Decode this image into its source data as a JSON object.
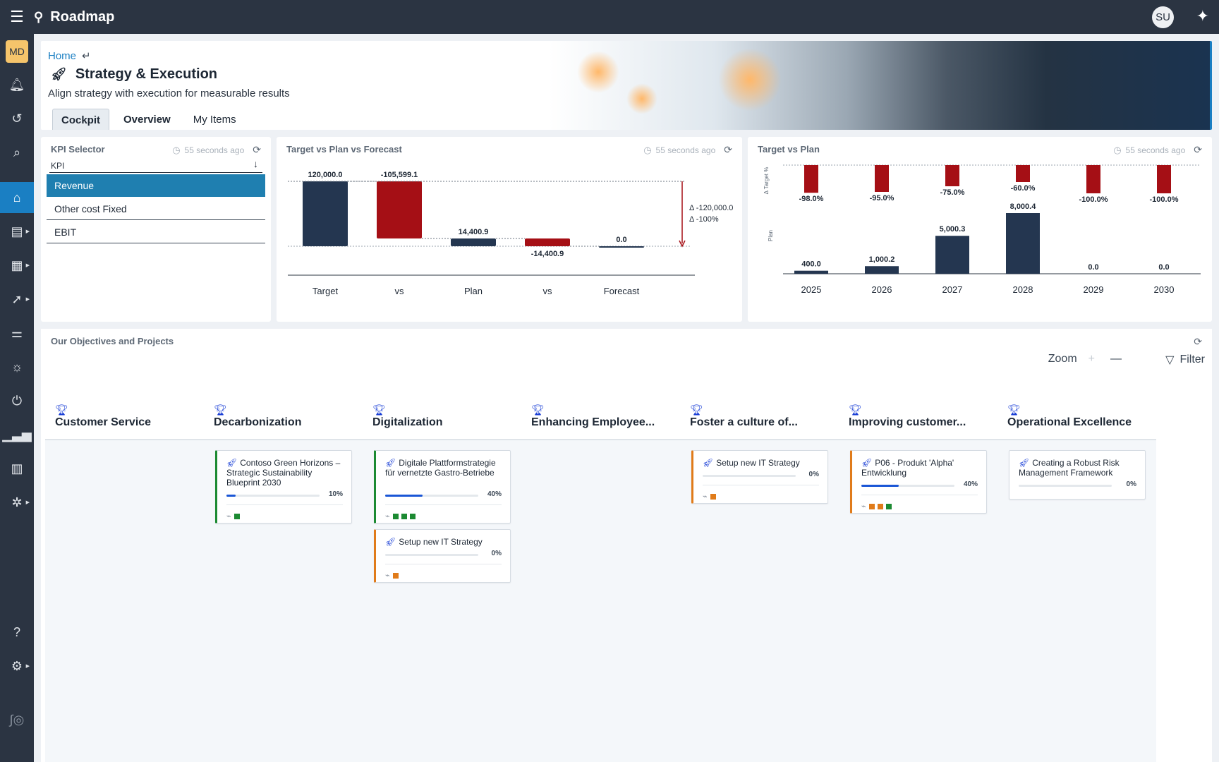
{
  "app": {
    "title": "Roadmap",
    "user_initials": "SU",
    "workspace_initials": "MD"
  },
  "header": {
    "breadcrumb": "Home",
    "title": "Strategy & Execution",
    "subtitle": "Align strategy with execution for measurable results",
    "tabs": [
      {
        "label": "Cockpit"
      },
      {
        "label": "Overview"
      },
      {
        "label": "My Items"
      }
    ]
  },
  "kpi_selector": {
    "title": "KPI Selector",
    "updated": "55 seconds ago",
    "label": "KPI",
    "items": [
      {
        "label": "Revenue"
      },
      {
        "label": "Other cost Fixed"
      },
      {
        "label": "EBIT"
      }
    ]
  },
  "waterfall": {
    "title": "Target vs Plan vs Forecast",
    "updated": "55 seconds ago",
    "delta_abs": "Δ -120,000.0",
    "delta_pct": "Δ -100%"
  },
  "target_plan": {
    "title": "Target vs Plan",
    "updated": "55 seconds ago",
    "y_top_label": "Δ Target %",
    "y_bottom_label": "Plan"
  },
  "chart_data": [
    {
      "type": "bar",
      "title": "Target vs Plan vs Forecast",
      "categories": [
        "Target",
        "vs",
        "Plan",
        "vs",
        "Forecast"
      ],
      "values": [
        120000.0,
        -105599.1,
        14400.9,
        -14400.9,
        0.0
      ],
      "labels": [
        "120,000.0",
        "-105,599.1",
        "14,400.9",
        "-14,400.9",
        "0.0"
      ],
      "colors": [
        "#243650",
        "#a50f15",
        "#243650",
        "#a50f15",
        "#243650"
      ]
    },
    {
      "type": "bar",
      "title": "Target vs Plan",
      "categories": [
        "2025",
        "2026",
        "2027",
        "2028",
        "2029",
        "2030"
      ],
      "series": [
        {
          "name": "Δ Target %",
          "values": [
            -98.0,
            -95.0,
            -75.0,
            -60.0,
            -100.0,
            -100.0
          ],
          "labels": [
            "-98.0%",
            "-95.0%",
            "-75.0%",
            "-60.0%",
            "-100.0%",
            "-100.0%"
          ]
        },
        {
          "name": "Plan",
          "values": [
            400.0,
            1000.2,
            5000.3,
            8000.4,
            0.0,
            0.0
          ],
          "labels": [
            "400.0",
            "1,000.2",
            "5,000.3",
            "8,000.4",
            "0.0",
            "0.0"
          ]
        }
      ]
    }
  ],
  "objectives": {
    "title": "Our Objectives and Projects",
    "zoom_label": "Zoom",
    "filter_label": "Filter",
    "columns": [
      {
        "name": "Customer Service",
        "cards": []
      },
      {
        "name": "Decarbonization",
        "cards": [
          {
            "title": "Contoso Green Horizons – Strategic Sustainability Blueprint 2030",
            "progress": 10,
            "progress_label": "10%",
            "status": [
              "green"
            ],
            "accent": "green"
          }
        ]
      },
      {
        "name": "Digitalization",
        "cards": [
          {
            "title": "Digitale Plattformstrategie für vernetzte Gastro-Betriebe",
            "progress": 40,
            "progress_label": "40%",
            "status": [
              "green",
              "green",
              "green"
            ],
            "accent": "green"
          },
          {
            "title": "Setup new IT Strategy",
            "progress": 0,
            "progress_label": "0%",
            "status": [
              "orange"
            ],
            "accent": "orange"
          }
        ]
      },
      {
        "name": "Enhancing Employee...",
        "cards": []
      },
      {
        "name": "Foster a culture of...",
        "cards": [
          {
            "title": "Setup new IT Strategy",
            "progress": 0,
            "progress_label": "0%",
            "status": [
              "orange"
            ],
            "accent": "orange"
          }
        ]
      },
      {
        "name": "Improving customer...",
        "cards": [
          {
            "title": "P06 - Produkt 'Alpha' Entwicklung",
            "progress": 40,
            "progress_label": "40%",
            "status": [
              "orange",
              "orange",
              "green"
            ],
            "accent": "orange"
          }
        ]
      },
      {
        "name": "Operational Excellence",
        "cards": [
          {
            "title": "Creating a Robust Risk Management Framework",
            "progress": 0,
            "progress_label": "0%",
            "status": [],
            "accent": "none"
          }
        ]
      }
    ]
  }
}
